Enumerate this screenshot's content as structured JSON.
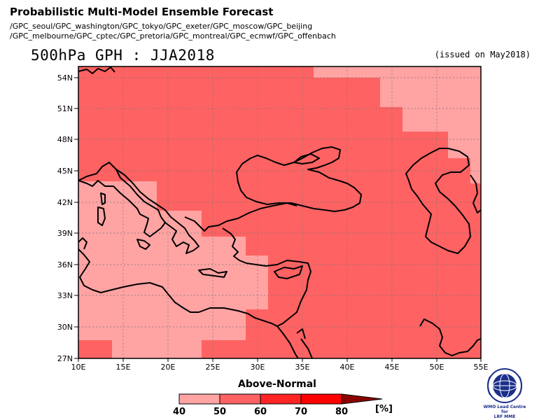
{
  "header": {
    "title": "Probabilistic Multi-Model Ensemble Forecast",
    "models_line1": "/GPC_seoul/GPC_washington/GPC_tokyo/GPC_exeter/GPC_moscow/GPC_beijing",
    "models_line2": "/GPC_melbourne/GPC_cptec/GPC_pretoria/GPC_montreal/GPC_ecmwf/GPC_offenbach",
    "plot_title": "500hPa GPH : JJA2018",
    "issued": "(issued on May2018)"
  },
  "map": {
    "lat_ticks": [
      "54N",
      "51N",
      "48N",
      "45N",
      "42N",
      "39N",
      "36N",
      "33N",
      "30N",
      "27N"
    ],
    "lon_ticks": [
      "10E",
      "15E",
      "20E",
      "25E",
      "30E",
      "35E",
      "40E",
      "45E",
      "50E",
      "55E"
    ],
    "lon_range": [
      10,
      55
    ],
    "lat_range": [
      27,
      55.5
    ],
    "colors": {
      "bin_40_50": "#ffa3a3",
      "bin_50_60": "#ff6262",
      "coast": "#000000",
      "grid": "#777777"
    }
  },
  "legend": {
    "title": "Above-Normal",
    "ticks": [
      "40",
      "50",
      "60",
      "70",
      "80"
    ],
    "unit": "[%]",
    "colors": [
      "#ffa3a3",
      "#ff6262",
      "#ff2424",
      "#ff0000",
      "#8b0000"
    ]
  },
  "logo": {
    "icon": "wmo-globe-icon",
    "text_line1": "WMO Lead Centre for",
    "text_line2": "LRF MME"
  }
}
